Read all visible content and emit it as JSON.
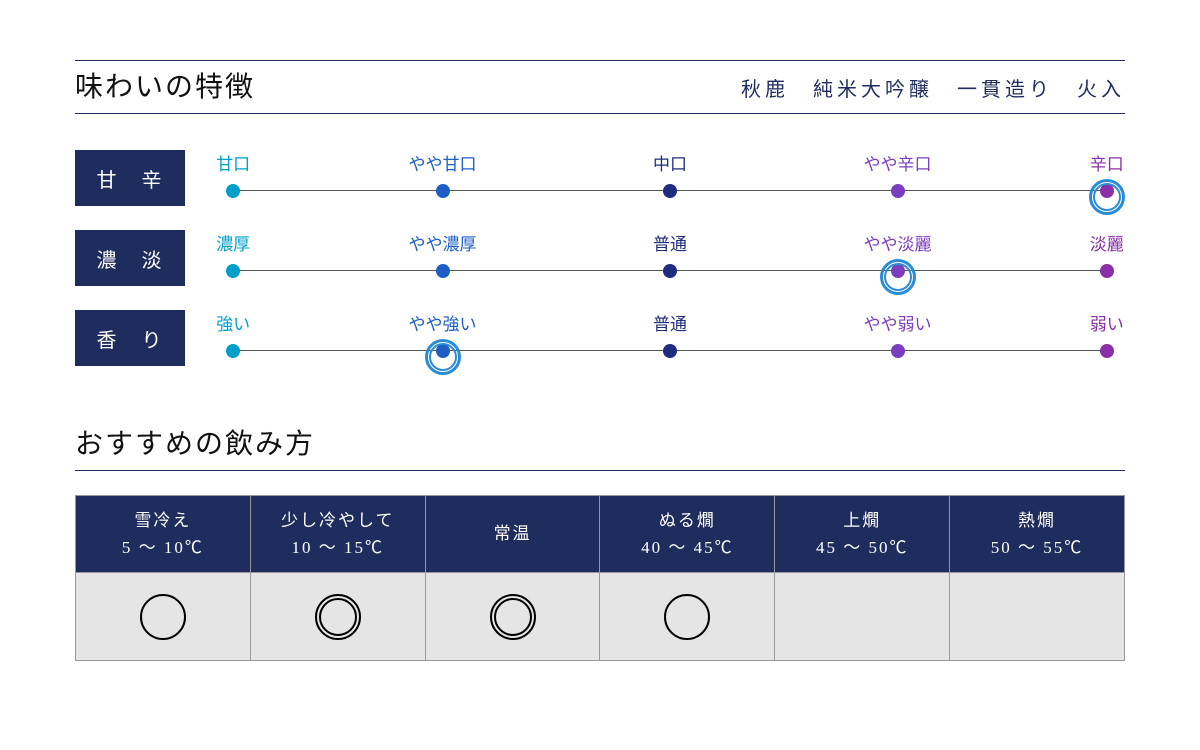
{
  "flavor_section": {
    "title": "味わいの特徴",
    "product_name": "秋鹿　純米大吟醸　一貫造り　火入",
    "rows": [
      {
        "label": "甘 辛",
        "points": [
          {
            "label": "甘口",
            "color_text": "#00a0c8",
            "color_dot": "#00a0c8"
          },
          {
            "label": "やや甘口",
            "color_text": "#1f5fc4",
            "color_dot": "#1f5fc4"
          },
          {
            "label": "中口",
            "color_text": "#1f2d7e",
            "color_dot": "#1f2d7e"
          },
          {
            "label": "やや辛口",
            "color_text": "#7a3fbf",
            "color_dot": "#7a3fbf"
          },
          {
            "label": "辛口",
            "color_text": "#8a2fa8",
            "color_dot": "#8a2fa8"
          }
        ],
        "selected_index": 4
      },
      {
        "label": "濃 淡",
        "points": [
          {
            "label": "濃厚",
            "color_text": "#00a0c8",
            "color_dot": "#00a0c8"
          },
          {
            "label": "やや濃厚",
            "color_text": "#1f5fc4",
            "color_dot": "#1f5fc4"
          },
          {
            "label": "普通",
            "color_text": "#1f2d7e",
            "color_dot": "#1f2d7e"
          },
          {
            "label": "やや淡麗",
            "color_text": "#7a3fbf",
            "color_dot": "#7a3fbf"
          },
          {
            "label": "淡麗",
            "color_text": "#8a2fa8",
            "color_dot": "#8a2fa8"
          }
        ],
        "selected_index": 3
      },
      {
        "label": "香 り",
        "points": [
          {
            "label": "強い",
            "color_text": "#00a0c8",
            "color_dot": "#00a0c8"
          },
          {
            "label": "やや強い",
            "color_text": "#1f5fc4",
            "color_dot": "#1f5fc4"
          },
          {
            "label": "普通",
            "color_text": "#1f2d7e",
            "color_dot": "#1f2d7e"
          },
          {
            "label": "やや弱い",
            "color_text": "#7a3fbf",
            "color_dot": "#7a3fbf"
          },
          {
            "label": "弱い",
            "color_text": "#8a2fa8",
            "color_dot": "#8a2fa8"
          }
        ],
        "selected_index": 1
      }
    ],
    "positions_pct": [
      2,
      25,
      50,
      75,
      98
    ],
    "ring_color": "#2a8cd6"
  },
  "serving_section": {
    "title": "おすすめの飲み方",
    "columns": [
      {
        "name": "雪冷え",
        "temp": "5 〜 10℃",
        "mark": "single"
      },
      {
        "name": "少し冷やして",
        "temp": "10 〜 15℃",
        "mark": "double"
      },
      {
        "name": "常温",
        "temp": "",
        "mark": "double"
      },
      {
        "name": "ぬる燗",
        "temp": "40 〜 45℃",
        "mark": "single"
      },
      {
        "name": "上燗",
        "temp": "45 〜 50℃",
        "mark": ""
      },
      {
        "name": "熱燗",
        "temp": "50 〜 55℃",
        "mark": ""
      }
    ]
  },
  "colors": {
    "navy": "#1f2d5e",
    "body_bg_gray": "#e5e5e5",
    "border_gray": "#999999"
  }
}
